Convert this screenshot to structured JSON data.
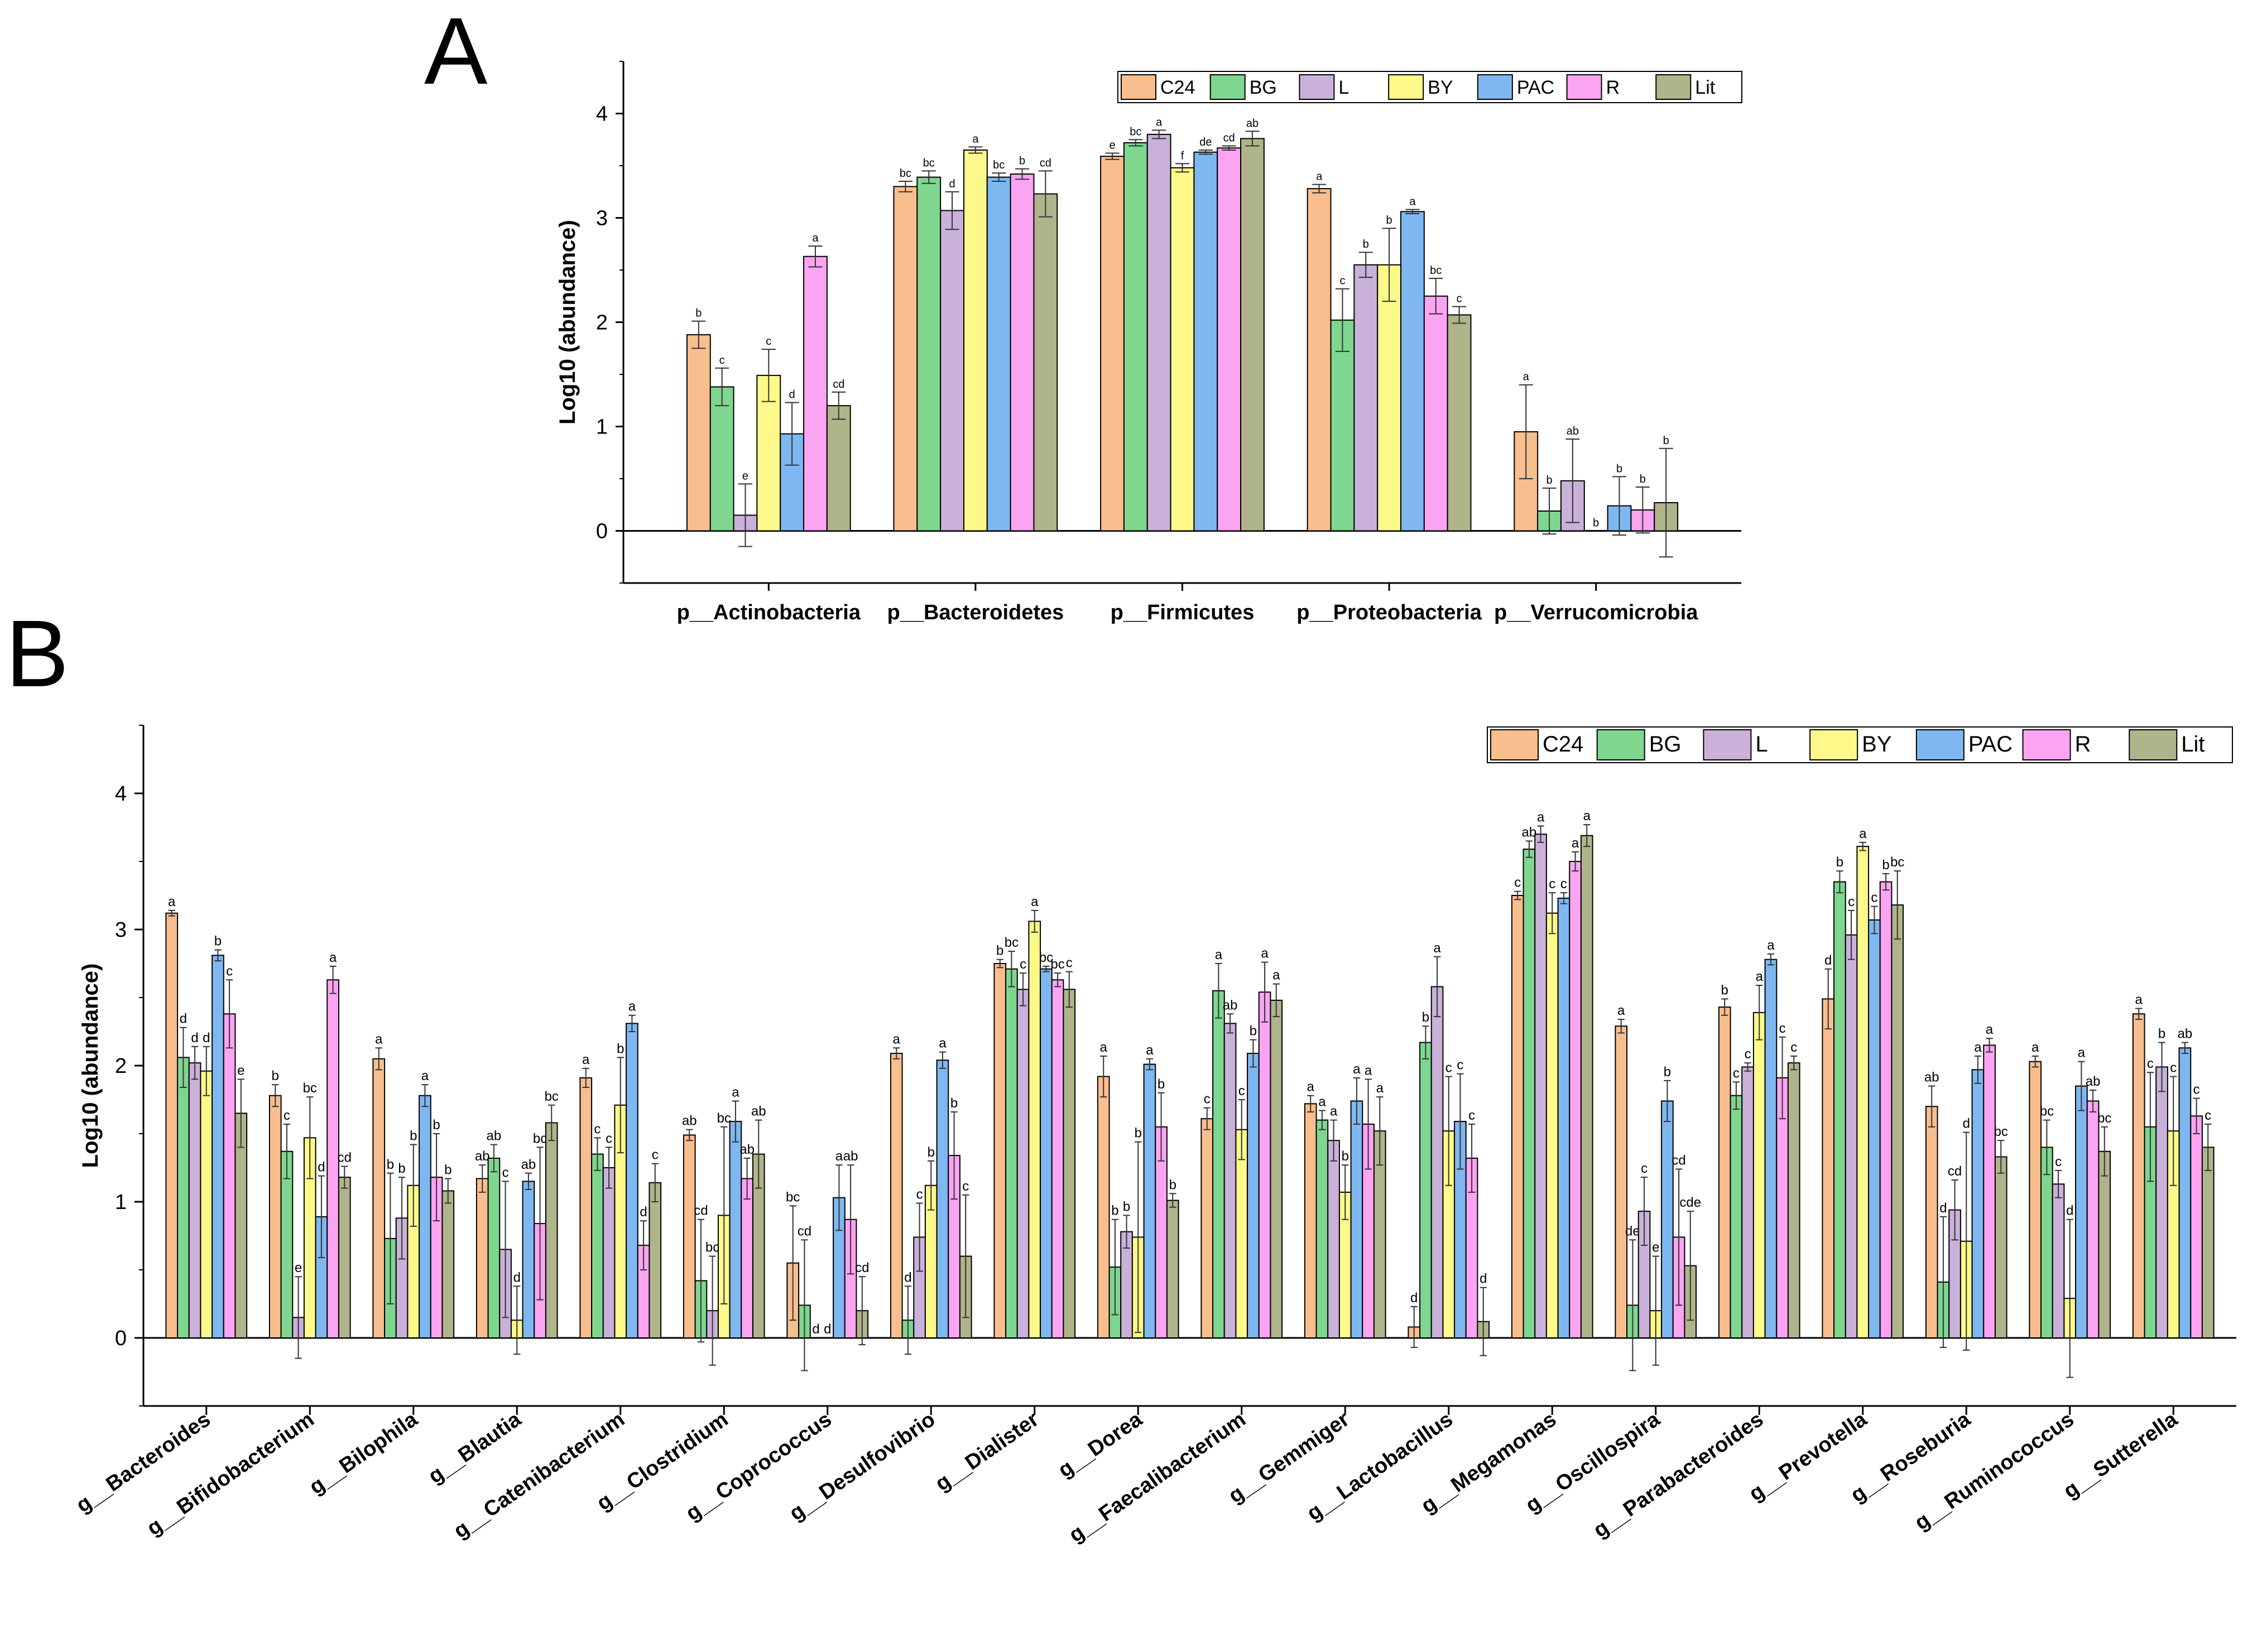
{
  "panel_labels": [
    "A",
    "B"
  ],
  "colors": {
    "C24": "#F9BE8E",
    "BG": "#7ED68F",
    "L": "#C9B1D9",
    "BY": "#FCF98A",
    "PAC": "#7FB7F0",
    "R": "#FBA4F2",
    "Lit": "#AFB48A"
  },
  "chart_data": [
    {
      "panel": "A",
      "type": "bar",
      "ylabel": "Log10 (abundance)",
      "ylim": [
        -0.5,
        4.5
      ],
      "yticks": [
        0,
        1,
        2,
        3,
        4
      ],
      "legend_position": "top-right",
      "categories": [
        "p__Actinobacteria",
        "p__Bacteroidetes",
        "p__Firmicutes",
        "p__Proteobacteria",
        "p__Verrucomicrobia"
      ],
      "series": [
        {
          "name": "C24",
          "values": [
            1.88,
            3.3,
            3.59,
            3.28,
            0.95
          ],
          "errors": [
            0.13,
            0.05,
            0.03,
            0.04,
            0.45
          ],
          "letters": [
            "b",
            "bc",
            "e",
            "a",
            "a"
          ]
        },
        {
          "name": "BG",
          "values": [
            1.38,
            3.39,
            3.72,
            2.02,
            0.19
          ],
          "errors": [
            0.18,
            0.06,
            0.03,
            0.3,
            0.22
          ],
          "letters": [
            "c",
            "bc",
            "bc",
            "c",
            "b"
          ]
        },
        {
          "name": "L",
          "values": [
            0.15,
            3.07,
            3.8,
            2.55,
            0.48
          ],
          "errors": [
            0.3,
            0.18,
            0.04,
            0.12,
            0.4
          ],
          "letters": [
            "e",
            "d",
            "a",
            "b",
            "ab"
          ]
        },
        {
          "name": "BY",
          "values": [
            1.49,
            3.65,
            3.48,
            2.55,
            0.0
          ],
          "errors": [
            0.25,
            0.03,
            0.04,
            0.35,
            0.0
          ],
          "letters": [
            "c",
            "a",
            "f",
            "b",
            "b"
          ]
        },
        {
          "name": "PAC",
          "values": [
            0.93,
            3.39,
            3.63,
            3.06,
            0.24
          ],
          "errors": [
            0.3,
            0.04,
            0.02,
            0.02,
            0.28
          ],
          "letters": [
            "d",
            "bc",
            "de",
            "a",
            "b"
          ]
        },
        {
          "name": "R",
          "values": [
            2.63,
            3.42,
            3.67,
            2.25,
            0.2
          ],
          "errors": [
            0.1,
            0.05,
            0.02,
            0.17,
            0.22
          ],
          "letters": [
            "a",
            "b",
            "cd",
            "bc",
            "b"
          ]
        },
        {
          "name": "Lit",
          "values": [
            1.2,
            3.23,
            3.76,
            2.07,
            0.27
          ],
          "errors": [
            0.13,
            0.22,
            0.07,
            0.08,
            0.52
          ],
          "letters": [
            "cd",
            "cd",
            "ab",
            "c",
            "b"
          ]
        }
      ]
    },
    {
      "panel": "B",
      "type": "bar",
      "ylabel": "Log10 (abundance)",
      "ylim": [
        -0.5,
        4.5
      ],
      "yticks": [
        0,
        1,
        2,
        3,
        4
      ],
      "legend_position": "top-right",
      "categories": [
        "g__Bacteroides",
        "g__Bifidobacterium",
        "g__Bilophila",
        "g__Blautia",
        "g__Catenibacterium",
        "g__Clostridium",
        "g__Coprococcus",
        "g__Desulfovibrio",
        "g__Dialister",
        "g__Dorea",
        "g__Faecalibacterium",
        "g__Gemmiger",
        "g__Lactobacillus",
        "g__Megamonas",
        "g__Oscillospira",
        "g__Parabacteroides",
        "g__Prevotella",
        "g__Roseburia",
        "g__Ruminococcus",
        "g__Sutterella"
      ],
      "series": [
        {
          "name": "C24",
          "values": [
            3.12,
            1.78,
            2.05,
            1.17,
            1.91,
            1.49,
            0.55,
            2.09,
            2.75,
            1.92,
            1.61,
            1.72,
            0.08,
            3.25,
            2.29,
            2.43,
            2.49,
            1.7,
            2.03,
            2.38
          ],
          "errors": [
            0.02,
            0.08,
            0.08,
            0.1,
            0.07,
            0.04,
            0.42,
            0.04,
            0.03,
            0.15,
            0.08,
            0.06,
            0.15,
            0.03,
            0.05,
            0.06,
            0.22,
            0.15,
            0.04,
            0.04
          ],
          "letters": [
            "a",
            "b",
            "a",
            "ab",
            "a",
            "ab",
            "bc",
            "a",
            "b",
            "a",
            "c",
            "a",
            "d",
            "c",
            "a",
            "b",
            "d",
            "ab",
            "a",
            "a"
          ]
        },
        {
          "name": "BG",
          "values": [
            2.06,
            1.37,
            0.73,
            1.32,
            1.35,
            0.42,
            0.24,
            0.13,
            2.71,
            0.52,
            2.55,
            1.6,
            2.17,
            3.59,
            0.24,
            1.78,
            3.35,
            0.41,
            1.4,
            1.55
          ],
          "errors": [
            0.22,
            0.2,
            0.48,
            0.1,
            0.12,
            0.45,
            0.48,
            0.25,
            0.13,
            0.35,
            0.2,
            0.07,
            0.12,
            0.06,
            0.48,
            0.1,
            0.08,
            0.48,
            0.2,
            0.4
          ],
          "letters": [
            "d",
            "c",
            "b",
            "ab",
            "c",
            "cd",
            "cd",
            "d",
            "bc",
            "b",
            "a",
            "a",
            "b",
            "ab",
            "de",
            "c",
            "b",
            "d",
            "bc",
            "c"
          ]
        },
        {
          "name": "L",
          "values": [
            2.02,
            0.15,
            0.88,
            0.65,
            1.25,
            0.2,
            0.0,
            0.74,
            2.56,
            0.78,
            2.31,
            1.45,
            2.58,
            3.7,
            0.93,
            1.99,
            2.96,
            0.94,
            1.13,
            1.99
          ],
          "errors": [
            0.12,
            0.3,
            0.3,
            0.5,
            0.15,
            0.4,
            0.0,
            0.25,
            0.12,
            0.12,
            0.07,
            0.15,
            0.22,
            0.06,
            0.25,
            0.03,
            0.18,
            0.22,
            0.1,
            0.18
          ],
          "letters": [
            "d",
            "e",
            "b",
            "c",
            "c",
            "bc",
            "d",
            "c",
            "c",
            "b",
            "ab",
            "a",
            "a",
            "a",
            "c",
            "c",
            "c",
            "cd",
            "c",
            "b"
          ]
        },
        {
          "name": "BY",
          "values": [
            1.96,
            1.47,
            1.12,
            0.13,
            1.71,
            0.9,
            0.0,
            1.12,
            3.06,
            0.74,
            1.53,
            1.07,
            1.52,
            3.12,
            0.2,
            2.39,
            3.61,
            0.71,
            0.29,
            1.52
          ],
          "errors": [
            0.18,
            0.3,
            0.3,
            0.25,
            0.35,
            0.65,
            0.0,
            0.18,
            0.08,
            0.7,
            0.22,
            0.2,
            0.4,
            0.15,
            0.4,
            0.2,
            0.03,
            0.8,
            0.58,
            0.4
          ],
          "letters": [
            "d",
            "bc",
            "b",
            "d",
            "b",
            "bc",
            "d",
            "b",
            "a",
            "b",
            "c",
            "b",
            "c",
            "c",
            "e",
            "a",
            "a",
            "d",
            "d",
            "c"
          ]
        },
        {
          "name": "PAC",
          "values": [
            2.81,
            0.89,
            1.78,
            1.15,
            2.31,
            1.59,
            1.03,
            2.04,
            2.71,
            2.01,
            2.09,
            1.74,
            1.59,
            3.23,
            1.74,
            2.78,
            3.07,
            1.97,
            1.85,
            2.13
          ],
          "errors": [
            0.04,
            0.3,
            0.08,
            0.06,
            0.06,
            0.15,
            0.24,
            0.06,
            0.02,
            0.04,
            0.1,
            0.17,
            0.35,
            0.04,
            0.15,
            0.04,
            0.1,
            0.1,
            0.18,
            0.04
          ],
          "letters": [
            "b",
            "d",
            "a",
            "ab",
            "a",
            "a",
            "a",
            "a",
            "bc",
            "a",
            "b",
            "a",
            "c",
            "c",
            "b",
            "a",
            "c",
            "a",
            "a",
            "ab"
          ]
        },
        {
          "name": "R",
          "values": [
            2.38,
            2.63,
            1.18,
            0.84,
            0.68,
            1.17,
            0.87,
            1.34,
            2.63,
            1.55,
            2.54,
            1.57,
            1.32,
            3.5,
            0.74,
            1.91,
            3.35,
            2.15,
            1.74,
            1.63
          ],
          "errors": [
            0.25,
            0.1,
            0.32,
            0.56,
            0.18,
            0.15,
            0.4,
            0.32,
            0.05,
            0.25,
            0.22,
            0.33,
            0.25,
            0.07,
            0.5,
            0.3,
            0.06,
            0.05,
            0.08,
            0.13
          ],
          "letters": [
            "c",
            "a",
            "b",
            "bc",
            "d",
            "ab",
            "ab",
            "b",
            "bc",
            "b",
            "a",
            "a",
            "c",
            "a",
            "cd",
            "c",
            "b",
            "a",
            "ab",
            "c"
          ]
        },
        {
          "name": "Lit",
          "values": [
            1.65,
            1.18,
            1.08,
            1.58,
            1.14,
            1.35,
            0.2,
            0.6,
            2.56,
            1.01,
            2.48,
            1.52,
            0.12,
            3.69,
            0.53,
            2.02,
            3.18,
            1.33,
            1.37,
            1.4
          ],
          "errors": [
            0.25,
            0.08,
            0.09,
            0.13,
            0.14,
            0.25,
            0.25,
            0.45,
            0.13,
            0.05,
            0.12,
            0.25,
            0.25,
            0.08,
            0.4,
            0.05,
            0.25,
            0.12,
            0.18,
            0.17
          ],
          "letters": [
            "e",
            "cd",
            "b",
            "bc",
            "c",
            "ab",
            "cd",
            "c",
            "c",
            "b",
            "a",
            "a",
            "d",
            "a",
            "cde",
            "c",
            "bc",
            "bc",
            "bc",
            "c"
          ]
        }
      ]
    }
  ]
}
